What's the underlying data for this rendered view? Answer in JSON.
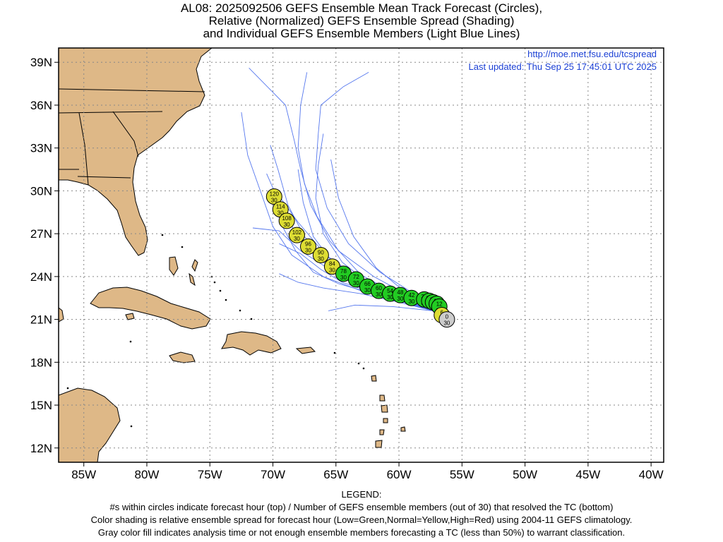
{
  "title": {
    "line1": "AL08: 2025092506 GEFS Ensemble Mean Track Forecast (Circles),",
    "line2": "Relative (Normalized) GEFS Ensemble Spread (Shading)",
    "line3": "and Individual GEFS Ensemble Members (Light Blue Lines)"
  },
  "meta": {
    "url": "http://moe.met.fsu.edu/tcspread",
    "updated": "Last updated: Thu Sep 25 17:45:01 UTC 2025"
  },
  "axes": {
    "lon_range": [
      -87,
      -39
    ],
    "lat_range": [
      11,
      40
    ],
    "x_ticks": [
      "85W",
      "80W",
      "75W",
      "70W",
      "65W",
      "60W",
      "55W",
      "50W",
      "45W",
      "40W"
    ],
    "y_ticks": [
      "39N",
      "36N",
      "33N",
      "30N",
      "27N",
      "24N",
      "21N",
      "18N",
      "15N",
      "12N"
    ],
    "grid": true
  },
  "colors": {
    "land": "#deb887",
    "ocean": "#ffffff",
    "member_line": "#5577ee",
    "low_spread": "#22cc22",
    "normal_spread": "#dddd33",
    "analysis": "#cccccc",
    "link": "#1a3fd4"
  },
  "track": [
    {
      "hour": "0",
      "members": "30",
      "lon": -56.2,
      "lat": 21.0,
      "spread": "analysis"
    },
    {
      "hour": "6",
      "members": "30",
      "lon": -56.6,
      "lat": 21.3,
      "spread": "normal"
    },
    {
      "hour": "12",
      "members": "30",
      "lon": -56.8,
      "lat": 21.9,
      "spread": "low"
    },
    {
      "hour": "18",
      "members": "30",
      "lon": -57.0,
      "lat": 22.1,
      "spread": "low"
    },
    {
      "hour": "24",
      "members": "30",
      "lon": -57.3,
      "lat": 22.2,
      "spread": "low"
    },
    {
      "hour": "30",
      "members": "30",
      "lon": -57.6,
      "lat": 22.3,
      "spread": "low"
    },
    {
      "hour": "36",
      "members": "30",
      "lon": -58.0,
      "lat": 22.4,
      "spread": "low"
    },
    {
      "hour": "42",
      "members": "30",
      "lon": -59.0,
      "lat": 22.5,
      "spread": "low"
    },
    {
      "hour": "48",
      "members": "30",
      "lon": -59.9,
      "lat": 22.7,
      "spread": "low"
    },
    {
      "hour": "54",
      "members": "30",
      "lon": -60.7,
      "lat": 22.8,
      "spread": "low"
    },
    {
      "hour": "60",
      "members": "30",
      "lon": -61.6,
      "lat": 23.0,
      "spread": "low"
    },
    {
      "hour": "66",
      "members": "30",
      "lon": -62.5,
      "lat": 23.3,
      "spread": "low"
    },
    {
      "hour": "72",
      "members": "30",
      "lon": -63.4,
      "lat": 23.8,
      "spread": "low"
    },
    {
      "hour": "78",
      "members": "30",
      "lon": -64.4,
      "lat": 24.2,
      "spread": "low"
    },
    {
      "hour": "84",
      "members": "30",
      "lon": -65.3,
      "lat": 24.7,
      "spread": "normal"
    },
    {
      "hour": "90",
      "members": "30",
      "lon": -66.2,
      "lat": 25.5,
      "spread": "normal"
    },
    {
      "hour": "96",
      "members": "30",
      "lon": -67.2,
      "lat": 26.1,
      "spread": "normal"
    },
    {
      "hour": "102",
      "members": "30",
      "lon": -68.1,
      "lat": 26.9,
      "spread": "normal"
    },
    {
      "hour": "108",
      "members": "30",
      "lon": -68.9,
      "lat": 27.9,
      "spread": "normal"
    },
    {
      "hour": "114",
      "members": "30",
      "lon": -69.4,
      "lat": 28.7,
      "spread": "normal"
    },
    {
      "hour": "120",
      "members": "30",
      "lon": -69.9,
      "lat": 29.6,
      "spread": "normal"
    }
  ],
  "member_tracks": [
    [
      [
        -57.3,
        21.6
      ],
      [
        -60,
        22.3
      ],
      [
        -63,
        23.0
      ],
      [
        -66,
        24.0
      ],
      [
        -68.5,
        25.5
      ],
      [
        -70,
        27.5
      ],
      [
        -71,
        30
      ],
      [
        -72,
        32.5
      ],
      [
        -72.5,
        35.5
      ]
    ],
    [
      [
        -57.3,
        21.6
      ],
      [
        -60,
        22.5
      ],
      [
        -63,
        23.4
      ],
      [
        -65.5,
        24.8
      ],
      [
        -67.5,
        26.8
      ],
      [
        -68.8,
        29.0
      ],
      [
        -69.6,
        31.5
      ],
      [
        -70.2,
        33.2
      ]
    ],
    [
      [
        -57.3,
        21.6
      ],
      [
        -60,
        22.6
      ],
      [
        -63,
        23.8
      ],
      [
        -65.8,
        25.5
      ],
      [
        -68,
        27.8
      ],
      [
        -69.8,
        30.0
      ]
    ],
    [
      [
        -57.3,
        21.6
      ],
      [
        -59.5,
        22.8
      ],
      [
        -62,
        24.0
      ],
      [
        -64.8,
        25.8
      ],
      [
        -66.5,
        28.2
      ],
      [
        -67.5,
        30.5
      ],
      [
        -68.0,
        33.0
      ],
      [
        -67.8,
        36.0
      ],
      [
        -67.3,
        38.3
      ]
    ],
    [
      [
        -57.3,
        21.6
      ],
      [
        -59,
        22.9
      ],
      [
        -61.5,
        24.3
      ],
      [
        -64,
        26.3
      ],
      [
        -65.7,
        28.8
      ],
      [
        -66.6,
        31.5
      ],
      [
        -66.4,
        34.0
      ],
      [
        -66.2,
        36.0
      ],
      [
        -64.4,
        37.3
      ],
      [
        -62.4,
        38.3
      ]
    ],
    [
      [
        -57.3,
        21.6
      ],
      [
        -60,
        22.7
      ],
      [
        -63,
        24.1
      ],
      [
        -65.5,
        26.5
      ],
      [
        -67,
        29.0
      ],
      [
        -67.8,
        31.5
      ],
      [
        -68.3,
        33.5
      ],
      [
        -69,
        36.0
      ],
      [
        -71.9,
        38.6
      ]
    ],
    [
      [
        -57.3,
        21.6
      ],
      [
        -60,
        22.4
      ],
      [
        -63,
        23.2
      ],
      [
        -65.5,
        24.5
      ],
      [
        -67.8,
        25.8
      ],
      [
        -69.5,
        27.2
      ],
      [
        -71.6,
        27.4
      ]
    ],
    [
      [
        -57.3,
        21.6
      ],
      [
        -60,
        22.2
      ],
      [
        -63,
        22.8
      ],
      [
        -66,
        23.2
      ],
      [
        -68,
        23.6
      ],
      [
        -69.5,
        24.2
      ]
    ],
    [
      [
        -57.3,
        21.6
      ],
      [
        -60,
        22.5
      ],
      [
        -62.5,
        23.6
      ],
      [
        -64.5,
        25.0
      ],
      [
        -66,
        27.0
      ],
      [
        -66.6,
        29.5
      ],
      [
        -66.4,
        31.8
      ],
      [
        -66.0,
        34.0
      ]
    ],
    [
      [
        -57.3,
        21.6
      ],
      [
        -60,
        22.6
      ],
      [
        -62.8,
        23.7
      ],
      [
        -65.2,
        24.9
      ],
      [
        -66.8,
        26.8
      ],
      [
        -67.6,
        29.2
      ],
      [
        -68.0,
        31.5
      ]
    ],
    [
      [
        -57.3,
        21.6
      ],
      [
        -59.8,
        22.3
      ],
      [
        -62.4,
        22.9
      ],
      [
        -64.8,
        23.5
      ],
      [
        -66.8,
        24.3
      ],
      [
        -68.2,
        25.8
      ],
      [
        -69.3,
        27.6
      ]
    ],
    [
      [
        -57.3,
        21.6
      ],
      [
        -60.5,
        21.9
      ],
      [
        -63.5,
        22.0
      ],
      [
        -65.6,
        21.6
      ]
    ],
    [
      [
        -57.3,
        21.6
      ],
      [
        -60,
        22.5
      ],
      [
        -63,
        23.5
      ],
      [
        -66,
        25.0
      ],
      [
        -68.3,
        27.2
      ],
      [
        -69.6,
        29.4
      ],
      [
        -70.5,
        31.2
      ]
    ],
    [
      [
        -57.3,
        21.6
      ],
      [
        -59.5,
        22.9
      ],
      [
        -61.8,
        24.6
      ],
      [
        -63.6,
        26.8
      ],
      [
        -64.8,
        29.5
      ],
      [
        -65.4,
        32.2
      ]
    ],
    [
      [
        -57.3,
        21.6
      ],
      [
        -60,
        22.3
      ],
      [
        -62.5,
        23.0
      ],
      [
        -64.5,
        23.6
      ],
      [
        -66.2,
        24.5
      ],
      [
        -67.8,
        25.6
      ],
      [
        -69.5,
        26.3
      ]
    ]
  ],
  "legend": {
    "heading": "LEGEND:",
    "line1": "#s within circles indicate forecast hour (top) / Number of GEFS ensemble members (out of 30) that resolved the TC (bottom)",
    "line2": "Color shading is relative ensemble spread for forecast hour (Low=Green,Normal=Yellow,High=Red) using 2004-11 GEFS climatology.",
    "line3": "Gray color fill indicates analysis time or not enough ensemble members forecasting a TC (less than 50%) to warrant classification."
  }
}
